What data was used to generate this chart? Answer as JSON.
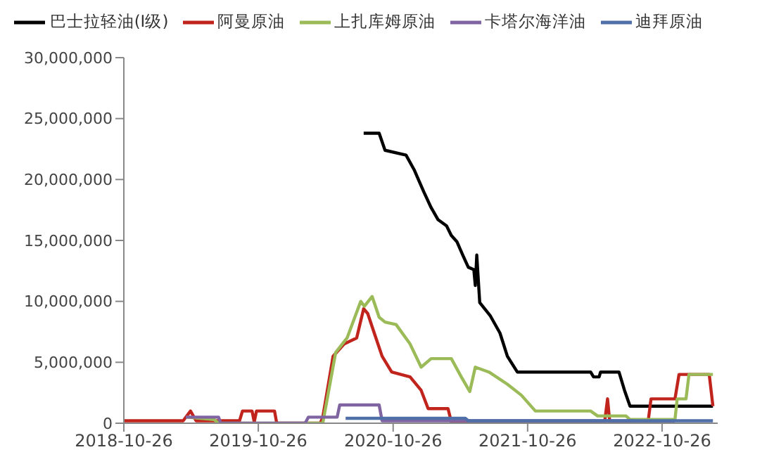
{
  "chart_data": {
    "type": "line",
    "legend": "top",
    "grid": false,
    "marker": "none",
    "line_style": "solid",
    "xlim": [
      "2018-10-26",
      "2023-03-26"
    ],
    "xticks": [
      "2018-10-26",
      "2019-10-26",
      "2020-10-26",
      "2021-10-26",
      "2022-10-26"
    ],
    "ylim": [
      0,
      30000000
    ],
    "yticks": [
      0,
      {
        "value": 5000000,
        "label": "5,000,000"
      },
      {
        "value": 10000000,
        "label": "10,000,000"
      },
      {
        "value": 15000000,
        "label": "15,000,000"
      },
      {
        "value": 20000000,
        "label": "20,000,000"
      },
      {
        "value": 25000000,
        "label": "25,000,000"
      },
      {
        "value": 30000000,
        "label": "30,000,000"
      }
    ],
    "series": [
      {
        "name": "巴士拉轻油(Ⅰ级)",
        "color": "#000000",
        "x": [
          "2020-08-07",
          "2020-09-18",
          "2020-10-04",
          "2020-11-30",
          "2020-12-22",
          "2021-01-17",
          "2021-02-06",
          "2021-02-25",
          "2021-03-20",
          "2021-04-02",
          "2021-04-17",
          "2021-05-03",
          "2021-05-18",
          "2021-06-02",
          "2021-06-06",
          "2021-06-10",
          "2021-06-18",
          "2021-07-17",
          "2021-08-12",
          "2021-09-01",
          "2021-09-28",
          "2022-04-15",
          "2022-04-23",
          "2022-05-08",
          "2022-05-12",
          "2022-07-01",
          "2022-07-16",
          "2022-07-31",
          "2023-03-13"
        ],
        "values": [
          23800000,
          23800000,
          22400000,
          22000000,
          20800000,
          19000000,
          17700000,
          16700000,
          16200000,
          15400000,
          14900000,
          13800000,
          12800000,
          12600000,
          11300000,
          13800000,
          9900000,
          8800000,
          7400000,
          5500000,
          4200000,
          4200000,
          3800000,
          3800000,
          4200000,
          4200000,
          2700000,
          1400000,
          1400000
        ]
      },
      {
        "name": "阿曼原油",
        "color": "#c0241c",
        "x": [
          "2018-10-26",
          "2019-04-05",
          "2019-04-25",
          "2019-05-10",
          "2019-09-05",
          "2019-09-13",
          "2019-10-09",
          "2019-10-15",
          "2019-10-21",
          "2019-12-09",
          "2019-12-15",
          "2020-04-11",
          "2020-04-18",
          "2020-05-16",
          "2020-06-15",
          "2020-07-19",
          "2020-08-07",
          "2020-08-18",
          "2020-09-07",
          "2020-09-26",
          "2020-10-22",
          "2020-12-11",
          "2021-01-10",
          "2021-01-29",
          "2021-03-24",
          "2021-04-02",
          "2022-05-23",
          "2022-05-31",
          "2022-06-06",
          "2022-09-18",
          "2022-09-26",
          "2022-11-30",
          "2022-12-11",
          "2023-03-03",
          "2023-03-13"
        ],
        "values": [
          200000,
          200000,
          1000000,
          200000,
          200000,
          1000000,
          1000000,
          100000,
          1000000,
          1000000,
          0,
          0,
          500000,
          5500000,
          6500000,
          7000000,
          9400000,
          9000000,
          7200000,
          5500000,
          4200000,
          3800000,
          2700000,
          1200000,
          1200000,
          100000,
          100000,
          2000000,
          100000,
          100000,
          2000000,
          2000000,
          4000000,
          4000000,
          1400000
        ]
      },
      {
        "name": "上扎库姆原油",
        "color": "#9bbb59",
        "x": [
          "2019-04-15",
          "2019-06-28",
          "2019-07-10",
          "2020-04-18",
          "2020-05-23",
          "2020-06-23",
          "2020-07-30",
          "2020-08-09",
          "2020-08-30",
          "2020-09-18",
          "2020-10-04",
          "2020-11-03",
          "2020-12-11",
          "2021-01-10",
          "2021-02-06",
          "2021-04-02",
          "2021-04-29",
          "2021-05-22",
          "2021-06-06",
          "2021-07-13",
          "2021-09-01",
          "2021-10-09",
          "2021-11-16",
          "2022-04-15",
          "2022-05-04",
          "2022-07-20",
          "2022-07-31",
          "2022-11-30",
          "2022-12-06",
          "2022-12-30",
          "2023-01-07",
          "2023-03-13"
        ],
        "values": [
          500000,
          300000,
          0,
          0,
          5800000,
          7000000,
          10000000,
          9600000,
          10400000,
          8700000,
          8300000,
          8100000,
          6500000,
          4600000,
          5300000,
          5300000,
          3800000,
          2600000,
          4600000,
          4200000,
          3200000,
          2300000,
          1000000,
          1000000,
          600000,
          600000,
          300000,
          300000,
          2000000,
          2000000,
          4000000,
          4000000
        ]
      },
      {
        "name": "卡塔尔海洋油",
        "color": "#8064a2",
        "x": [
          "2019-04-12",
          "2019-07-10",
          "2019-07-16",
          "2020-03-01",
          "2020-03-10",
          "2020-05-27",
          "2020-06-03",
          "2020-09-18",
          "2020-09-26",
          "2022-08-07",
          "2022-08-22",
          "2022-11-30"
        ],
        "values": [
          500000,
          500000,
          0,
          0,
          500000,
          500000,
          1500000,
          1500000,
          200000,
          200000,
          0,
          0
        ]
      },
      {
        "name": "迪拜原油",
        "color": "#4f6fa8",
        "x": [
          "2020-06-19",
          "2021-05-10",
          "2021-05-18",
          "2023-03-13"
        ],
        "values": [
          400000,
          400000,
          200000,
          200000
        ]
      }
    ]
  }
}
